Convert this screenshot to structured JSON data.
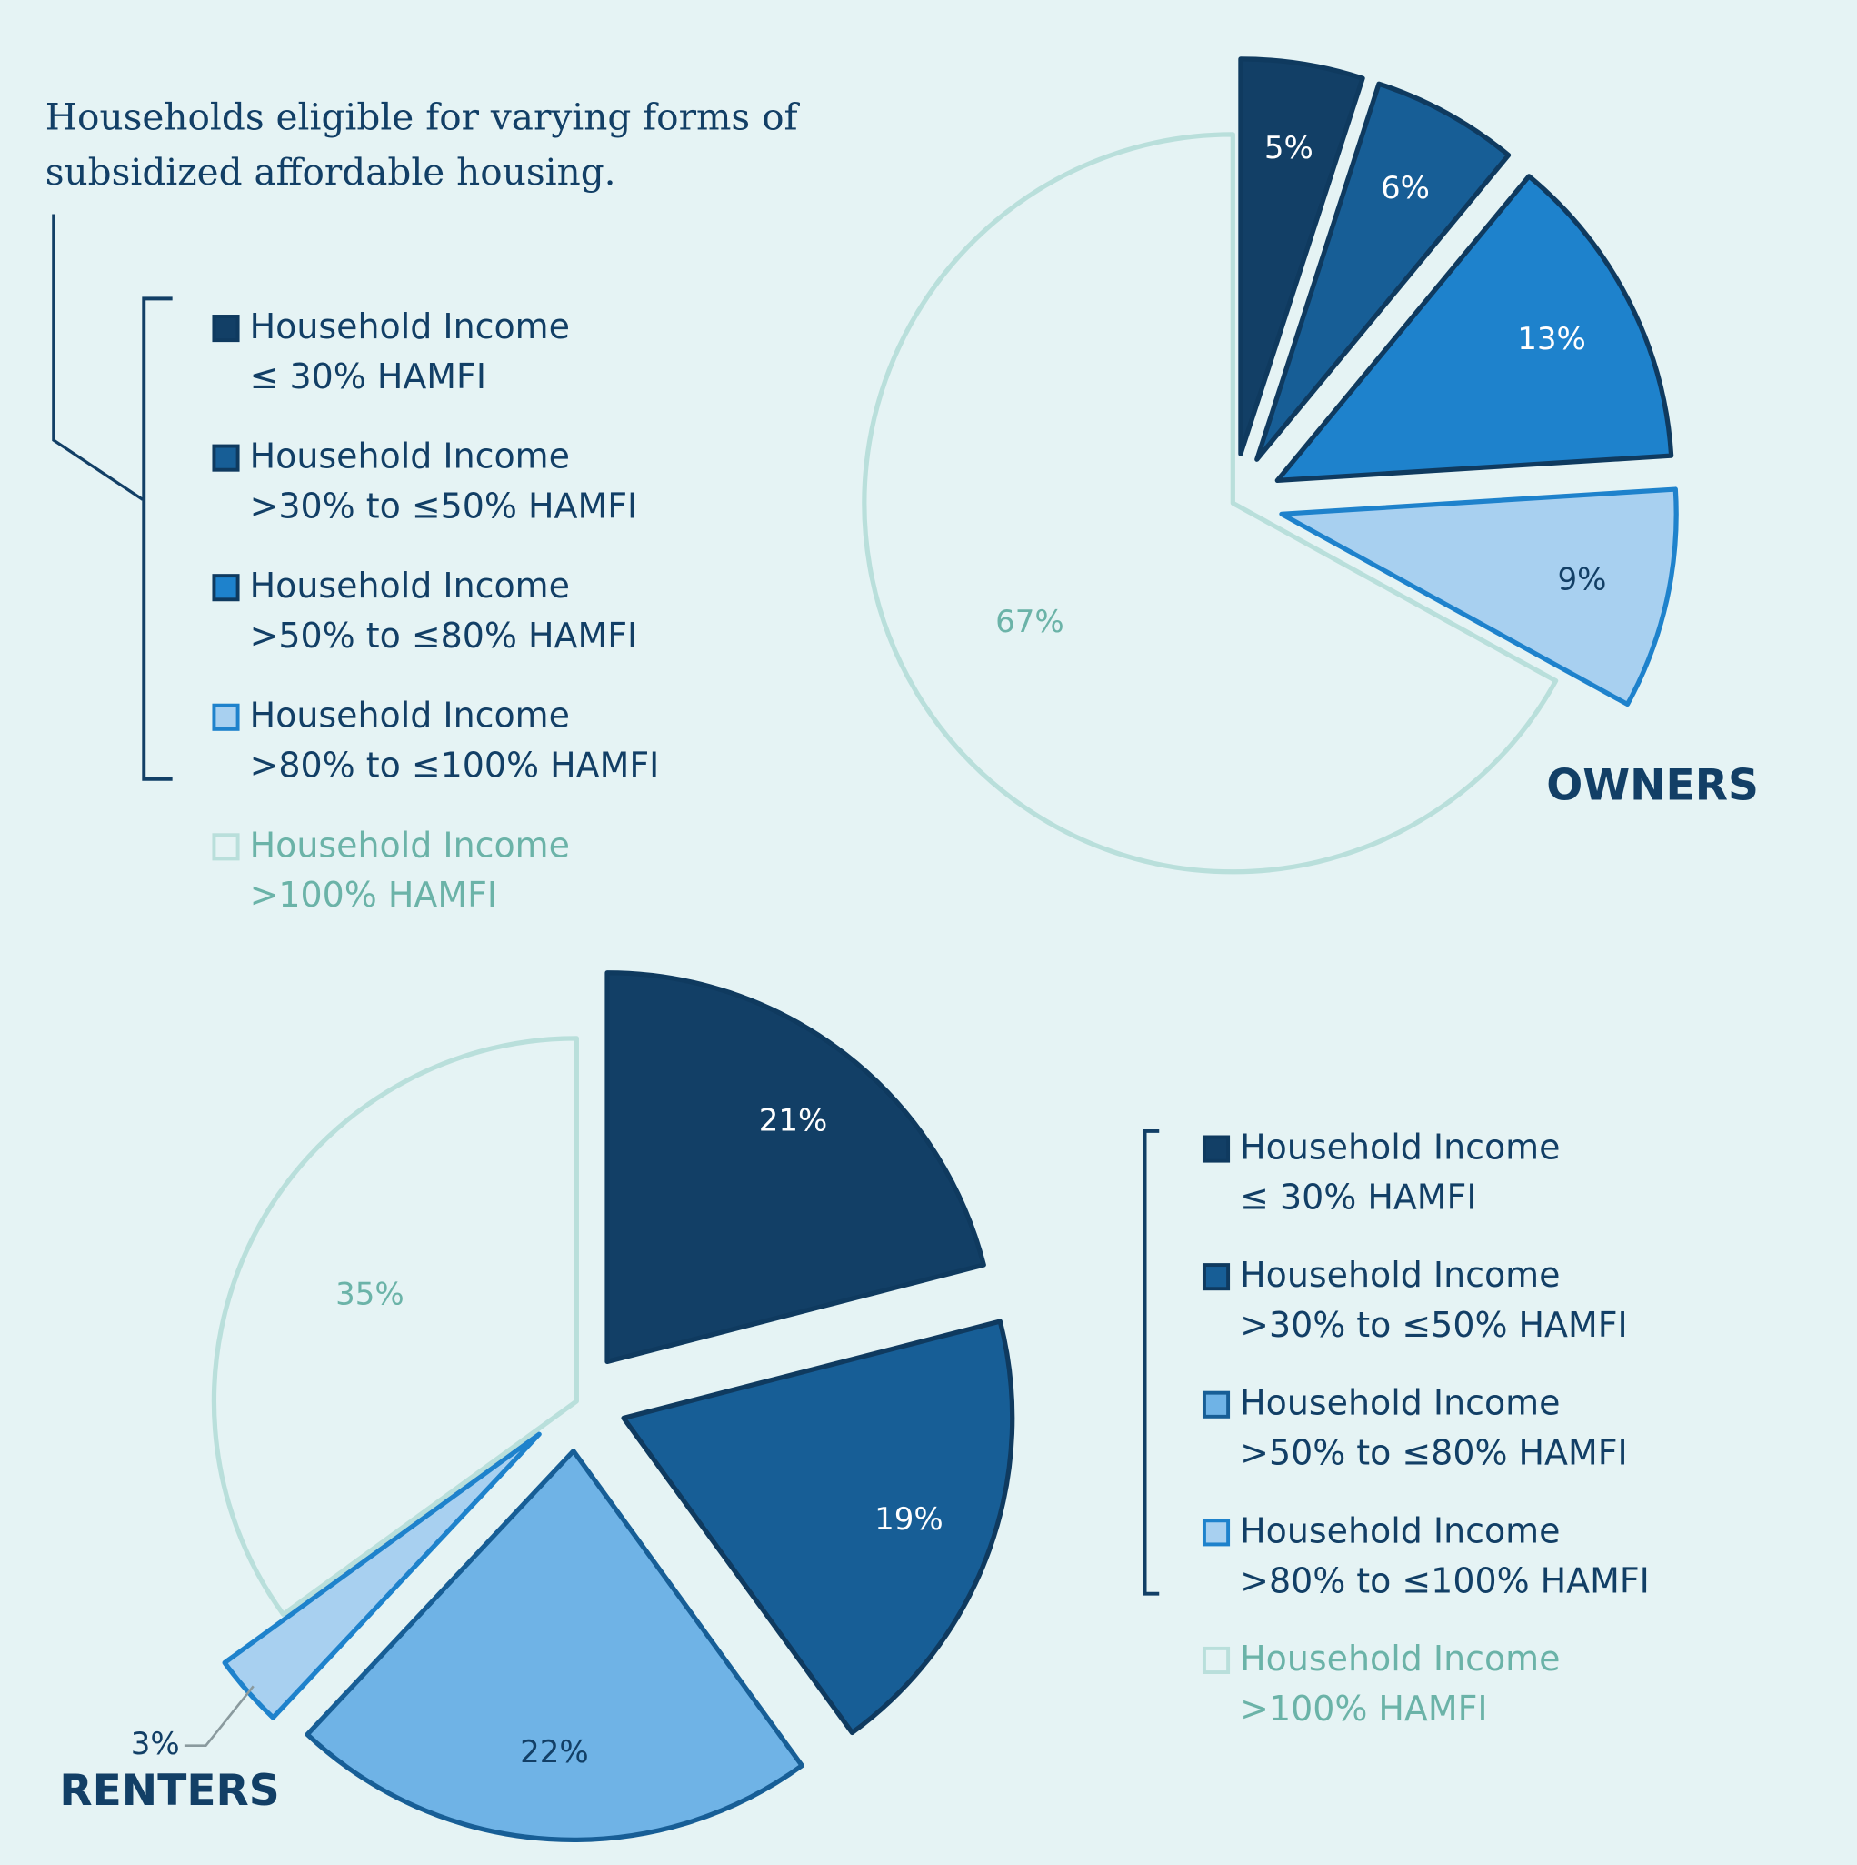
{
  "title": "Households eligible for varying forms of subsidized affordable housing.",
  "chart_data": [
    {
      "type": "pie",
      "title": "OWNERS",
      "categories": [
        "Household Income\n≤ 30% HAMFI",
        "Household Income\n>30% to ≤50% HAMFI",
        "Household Income\n>50% to ≤80% HAMFI",
        "Household Income\n>80% to ≤100% HAMFI",
        "Household Income\n>100% HAMFI"
      ],
      "values": [
        5,
        6,
        13,
        9,
        67
      ],
      "value_labels": [
        "5%",
        "6%",
        "13%",
        "9%",
        "67%"
      ],
      "colors": [
        "#123f66",
        "#175e96",
        "#1e82cc",
        "#a8d0f0",
        "#e5f3f4"
      ],
      "edgecolors": [
        "#0f3a5f",
        "#0f3a5f",
        "#0f3a5f",
        "#1e82cc",
        "#b9dfdb"
      ],
      "label_colors": [
        "#ffffff",
        "#ffffff",
        "#ffffff",
        "#123f66",
        "#6bb3a8"
      ]
    },
    {
      "type": "pie",
      "title": "RENTERS",
      "categories": [
        "Household Income\n≤ 30% HAMFI",
        "Household Income\n>30% to ≤50% HAMFI",
        "Household Income\n>50% to ≤80% HAMFI",
        "Household Income\n>80% to ≤100% HAMFI",
        "Household Income\n>100% HAMFI"
      ],
      "values": [
        21,
        19,
        22,
        3,
        35
      ],
      "value_labels": [
        "21%",
        "19%",
        "22%",
        "3%",
        "35%"
      ],
      "colors": [
        "#123f66",
        "#175e96",
        "#6fb3e6",
        "#a8d0f0",
        "#e5f3f4"
      ],
      "edgecolors": [
        "#0f3a5f",
        "#0f3a5f",
        "#175e96",
        "#1e82cc",
        "#b9dfdb"
      ],
      "label_colors": [
        "#ffffff",
        "#ffffff",
        "#123f66",
        "#123f66",
        "#6bb3a8"
      ]
    }
  ]
}
